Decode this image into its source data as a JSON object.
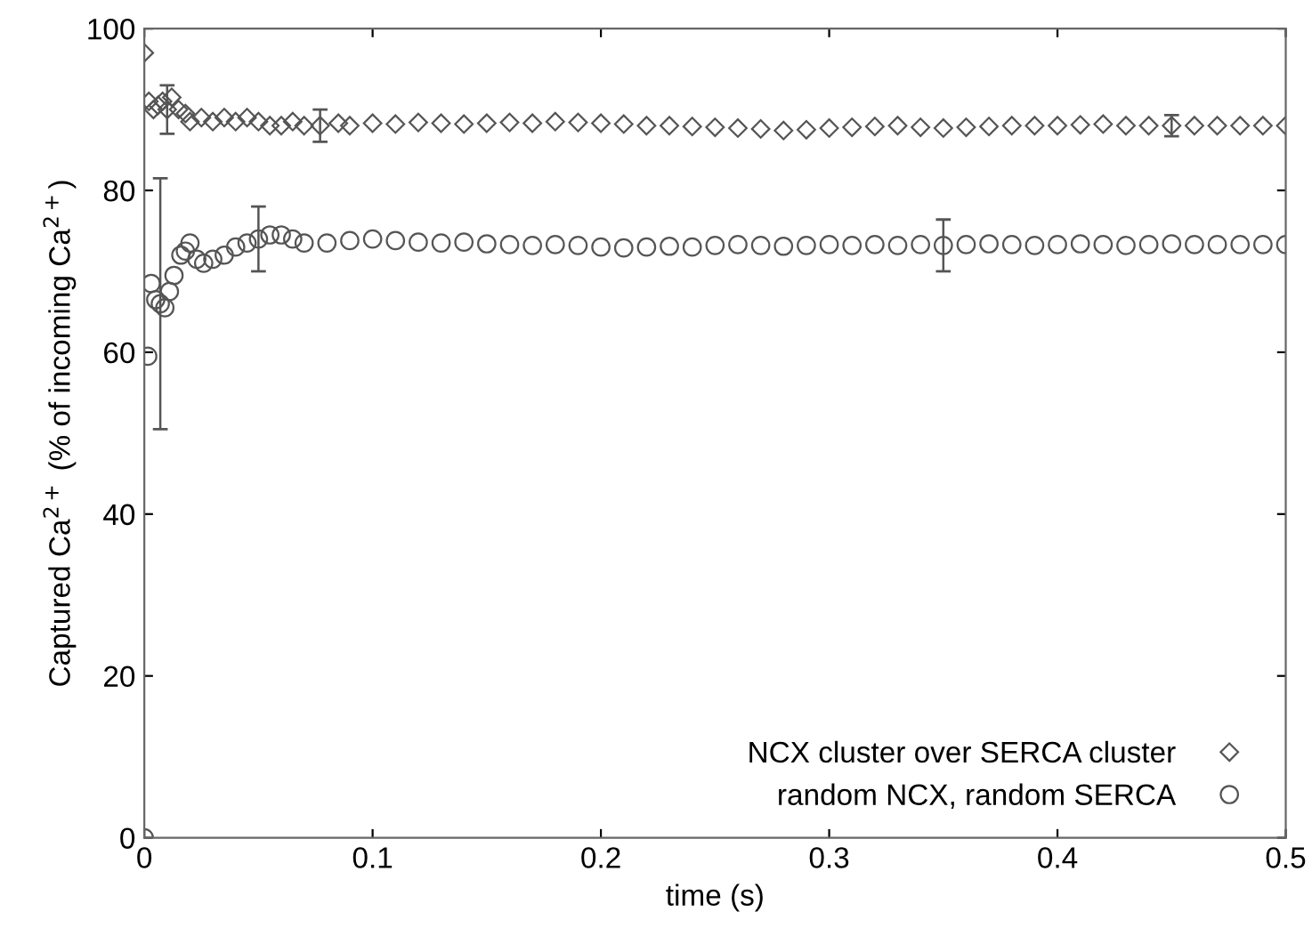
{
  "chart_data": {
    "type": "scatter",
    "xlabel": "time (s)",
    "ylabel": "Captured Ca$^{2+}$ (% of incoming Ca$^{2+}$)",
    "xlim": [
      0,
      0.5
    ],
    "ylim": [
      0,
      100
    ],
    "xticks": [
      0,
      0.1,
      0.2,
      0.3,
      0.4,
      0.5
    ],
    "yticks": [
      0,
      20,
      40,
      60,
      80,
      100
    ],
    "grid": false,
    "legend": "bottom right",
    "series": [
      {
        "name": "NCX cluster over SERCA cluster",
        "color": "#555555",
        "marker": "diamond",
        "x": [
          0,
          0.002,
          0.004,
          0.006,
          0.008,
          0.01,
          0.012,
          0.015,
          0.018,
          0.02,
          0.025,
          0.03,
          0.035,
          0.04,
          0.045,
          0.05,
          0.055,
          0.06,
          0.065,
          0.07,
          0.077,
          0.085,
          0.09,
          0.1,
          0.11,
          0.12,
          0.13,
          0.14,
          0.15,
          0.16,
          0.17,
          0.18,
          0.19,
          0.2,
          0.21,
          0.22,
          0.23,
          0.24,
          0.25,
          0.26,
          0.27,
          0.28,
          0.29,
          0.3,
          0.31,
          0.32,
          0.33,
          0.34,
          0.35,
          0.36,
          0.37,
          0.38,
          0.39,
          0.4,
          0.41,
          0.42,
          0.43,
          0.44,
          0.45,
          0.46,
          0.47,
          0.48,
          0.49,
          0.5
        ],
        "values": [
          97,
          91,
          90,
          90.5,
          91,
          90,
          91.5,
          90,
          89.5,
          88.5,
          89,
          88.5,
          89,
          88.5,
          89,
          88.5,
          88,
          88,
          88.5,
          88,
          88,
          88.3,
          88,
          88.3,
          88.2,
          88.4,
          88.3,
          88.2,
          88.3,
          88.4,
          88.3,
          88.5,
          88.4,
          88.3,
          88.2,
          88,
          88,
          87.9,
          87.8,
          87.7,
          87.6,
          87.4,
          87.5,
          87.7,
          87.8,
          87.9,
          88,
          87.8,
          87.7,
          87.8,
          87.9,
          88,
          88,
          88,
          88.1,
          88.2,
          88,
          88,
          88,
          88,
          88,
          88,
          88,
          88
        ],
        "errors": [
          null,
          null,
          null,
          null,
          null,
          3,
          null,
          null,
          null,
          null,
          null,
          null,
          null,
          null,
          null,
          null,
          null,
          null,
          null,
          null,
          2,
          null,
          null,
          null,
          null,
          null,
          null,
          null,
          null,
          null,
          null,
          null,
          null,
          null,
          null,
          null,
          null,
          null,
          null,
          null,
          null,
          null,
          null,
          null,
          null,
          null,
          null,
          null,
          null,
          null,
          null,
          null,
          null,
          null,
          null,
          null,
          null,
          null,
          1.3,
          null,
          null,
          null,
          null,
          null
        ]
      },
      {
        "name": "random NCX, random SERCA",
        "color": "#555555",
        "marker": "circle",
        "x": [
          0,
          0.0015,
          0.003,
          0.005,
          0.007,
          0.009,
          0.011,
          0.013,
          0.016,
          0.018,
          0.02,
          0.023,
          0.026,
          0.03,
          0.035,
          0.04,
          0.045,
          0.05,
          0.055,
          0.06,
          0.065,
          0.07,
          0.08,
          0.09,
          0.1,
          0.11,
          0.12,
          0.13,
          0.14,
          0.15,
          0.16,
          0.17,
          0.18,
          0.19,
          0.2,
          0.21,
          0.22,
          0.23,
          0.24,
          0.25,
          0.26,
          0.27,
          0.28,
          0.29,
          0.3,
          0.31,
          0.32,
          0.33,
          0.34,
          0.35,
          0.36,
          0.37,
          0.38,
          0.39,
          0.4,
          0.41,
          0.42,
          0.43,
          0.44,
          0.45,
          0.46,
          0.47,
          0.48,
          0.49,
          0.5
        ],
        "values": [
          0,
          59.5,
          68.5,
          66.5,
          66,
          65.5,
          67.5,
          69.5,
          72,
          72.5,
          73.5,
          71.5,
          71,
          71.5,
          72,
          73,
          73.5,
          74,
          74.5,
          74.5,
          74,
          73.5,
          73.5,
          73.8,
          74,
          73.8,
          73.6,
          73.5,
          73.6,
          73.4,
          73.3,
          73.2,
          73.3,
          73.2,
          73,
          72.9,
          73,
          73.1,
          73,
          73.2,
          73.3,
          73.2,
          73.1,
          73.2,
          73.3,
          73.2,
          73.3,
          73.2,
          73.3,
          73.2,
          73.3,
          73.4,
          73.3,
          73.2,
          73.3,
          73.4,
          73.3,
          73.2,
          73.3,
          73.4,
          73.3,
          73.3,
          73.3,
          73.3,
          73.3
        ],
        "errors": [
          null,
          null,
          null,
          null,
          15.5,
          null,
          null,
          null,
          null,
          null,
          null,
          null,
          null,
          null,
          null,
          null,
          null,
          4,
          null,
          null,
          null,
          null,
          null,
          null,
          null,
          null,
          null,
          null,
          null,
          null,
          null,
          null,
          null,
          null,
          null,
          null,
          null,
          null,
          null,
          null,
          null,
          null,
          null,
          null,
          null,
          null,
          null,
          null,
          null,
          3.2,
          null,
          null,
          null,
          null,
          null,
          null,
          null,
          null,
          null,
          null,
          null,
          null,
          null,
          null,
          null
        ]
      }
    ]
  }
}
